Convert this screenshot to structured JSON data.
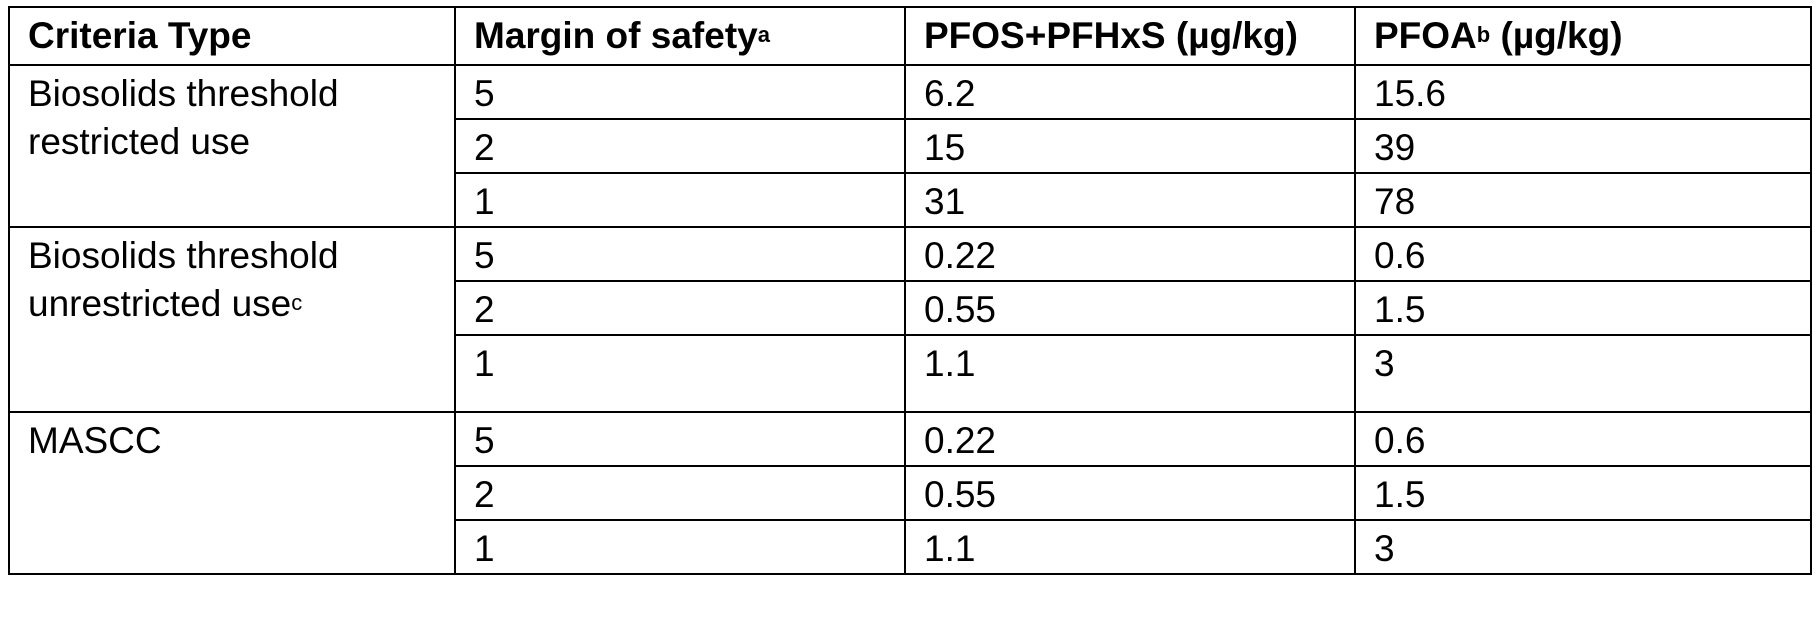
{
  "table": {
    "headers": [
      {
        "text": "Criteria Type",
        "sup": ""
      },
      {
        "text": "Margin of safety",
        "sup": "a"
      },
      {
        "text": "PFOS+PFHxS (µg/kg)",
        "sup": ""
      },
      {
        "text": "PFOA",
        "sup": "b",
        "after": " (µg/kg)"
      }
    ],
    "groups": [
      {
        "criteria_line1": "Biosolids threshold",
        "criteria_line2": "restricted use",
        "criteria_sup": "",
        "rows": [
          {
            "margin": "5",
            "pfos_pfhxs": "6.2",
            "pfoa": "15.6"
          },
          {
            "margin": "2",
            "pfos_pfhxs": "15",
            "pfoa": "39"
          },
          {
            "margin": "1",
            "pfos_pfhxs": "31",
            "pfoa": "78"
          }
        ]
      },
      {
        "criteria_line1": "Biosolids threshold",
        "criteria_line2": "unrestricted use",
        "criteria_sup": "c",
        "rows": [
          {
            "margin": "5",
            "pfos_pfhxs": "0.22",
            "pfoa": "0.6"
          },
          {
            "margin": "2",
            "pfos_pfhxs": "0.55",
            "pfoa": "1.5"
          },
          {
            "margin": "1",
            "pfos_pfhxs": "1.1",
            "pfoa": "3"
          }
        ]
      },
      {
        "criteria_line1": "MASCC",
        "criteria_line2": "",
        "criteria_sup": "",
        "rows": [
          {
            "margin": "5",
            "pfos_pfhxs": "0.22",
            "pfoa": "0.6"
          },
          {
            "margin": "2",
            "pfos_pfhxs": "0.55",
            "pfoa": "1.5"
          },
          {
            "margin": "1",
            "pfos_pfhxs": "1.1",
            "pfoa": "3"
          }
        ]
      }
    ]
  }
}
